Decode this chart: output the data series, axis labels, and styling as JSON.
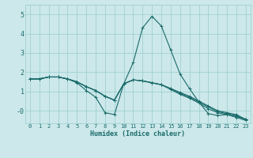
{
  "xlabel": "Humidex (Indice chaleur)",
  "bg_color": "#cce8ea",
  "grid_color": "#99cccc",
  "line_color": "#1a6b6b",
  "xlim": [
    -0.5,
    23.5
  ],
  "ylim": [
    -0.65,
    5.5
  ],
  "xticks": [
    0,
    1,
    2,
    3,
    4,
    5,
    6,
    7,
    8,
    9,
    10,
    11,
    12,
    13,
    14,
    15,
    16,
    17,
    18,
    19,
    20,
    21,
    22,
    23
  ],
  "yticks": [
    0,
    1,
    2,
    3,
    4,
    5
  ],
  "ytick_labels": [
    "-0",
    "1",
    "2",
    "3",
    "4",
    "5"
  ],
  "series": [
    [
      1.65,
      1.65,
      1.75,
      1.75,
      1.65,
      1.45,
      1.05,
      0.7,
      -0.1,
      -0.2,
      1.4,
      2.5,
      4.3,
      4.9,
      4.4,
      3.15,
      1.9,
      1.15,
      0.45,
      -0.15,
      -0.25,
      -0.2,
      -0.35,
      -0.5
    ],
    [
      1.65,
      1.65,
      1.75,
      1.75,
      1.65,
      1.5,
      1.25,
      1.05,
      0.75,
      0.55,
      1.4,
      1.6,
      1.55,
      1.45,
      1.35,
      1.15,
      0.95,
      0.75,
      0.5,
      0.25,
      0.0,
      -0.1,
      -0.2,
      -0.45
    ],
    [
      1.65,
      1.65,
      1.75,
      1.75,
      1.65,
      1.5,
      1.25,
      1.05,
      0.75,
      0.55,
      1.4,
      1.6,
      1.55,
      1.45,
      1.35,
      1.15,
      0.9,
      0.7,
      0.45,
      0.2,
      -0.05,
      -0.15,
      -0.25,
      -0.45
    ],
    [
      1.65,
      1.65,
      1.75,
      1.75,
      1.65,
      1.5,
      1.25,
      1.05,
      0.75,
      0.55,
      1.4,
      1.6,
      1.55,
      1.45,
      1.35,
      1.1,
      0.85,
      0.65,
      0.4,
      0.1,
      -0.1,
      -0.2,
      -0.3,
      -0.45
    ]
  ],
  "marker": "+",
  "markersize": 3,
  "linewidth": 0.8,
  "xlabel_fontsize": 6,
  "tick_fontsize": 5,
  "ytick_fontsize": 6
}
